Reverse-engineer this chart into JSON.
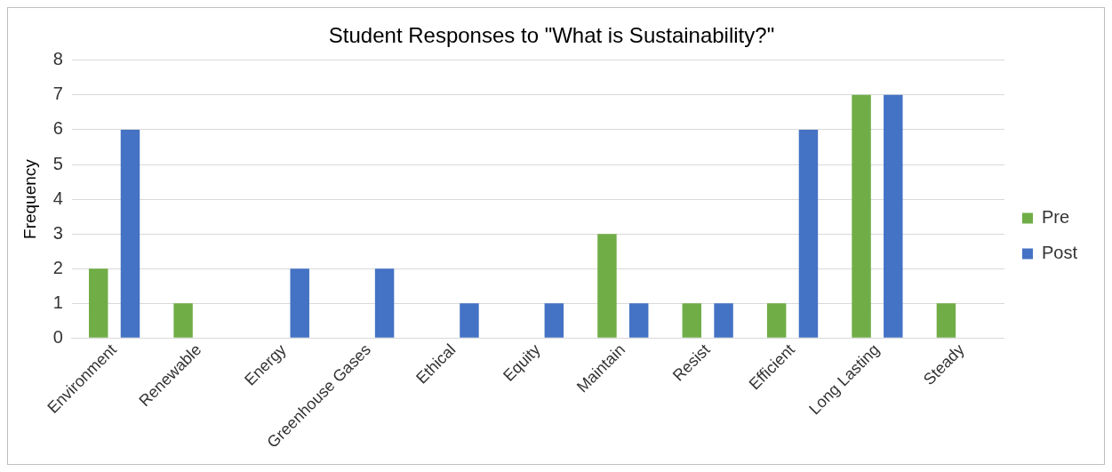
{
  "chart_data": {
    "type": "bar",
    "title": "Student Responses to \"What is Sustainability?\"",
    "ylabel": "Frequency",
    "categories": [
      "Environment",
      "Renewable",
      "Energy",
      "Greenhouse Gases",
      "Ethical",
      "Equity",
      "Maintain",
      "Resist",
      "Efficient",
      "Long Lasting",
      "Steady"
    ],
    "series": [
      {
        "name": "Pre",
        "color": "#70ad47",
        "values": [
          2,
          1,
          0,
          0,
          0,
          0,
          3,
          1,
          1,
          7,
          1
        ]
      },
      {
        "name": "Post",
        "color": "#4472c4",
        "values": [
          6,
          0,
          2,
          2,
          1,
          1,
          1,
          1,
          6,
          7,
          0
        ]
      }
    ],
    "ylim": [
      0,
      8
    ],
    "yticks": [
      0,
      1,
      2,
      3,
      4,
      5,
      6,
      7,
      8
    ],
    "grid": "y",
    "legend": "right"
  }
}
